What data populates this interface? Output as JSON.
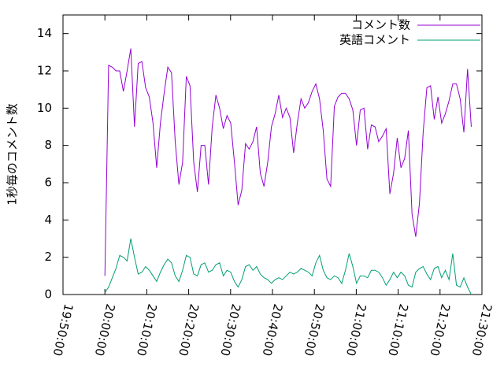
{
  "chart_data": {
    "type": "line",
    "y_label": "1秒毎のコメント数",
    "x": [
      72000,
      72053,
      72106,
      72159,
      72212,
      72265,
      72318,
      72371,
      72424,
      72477,
      72530,
      72583,
      72636,
      72689,
      72742,
      72795,
      72848,
      72901,
      72954,
      73007,
      73060,
      73113,
      73166,
      73219,
      73272,
      73325,
      73378,
      73431,
      73484,
      73537,
      73590,
      73643,
      73696,
      73749,
      73802,
      73855,
      73908,
      73961,
      74014,
      74067,
      74120,
      74173,
      74226,
      74279,
      74332,
      74385,
      74438,
      74491,
      74544,
      74597,
      74650,
      74703,
      74756,
      74809,
      74862,
      74915,
      74968,
      75021,
      75074,
      75127,
      75180,
      75233,
      75286,
      75339,
      75392,
      75445,
      75498,
      75551,
      75604,
      75657,
      75710,
      75763,
      75816,
      75869,
      75922,
      75975,
      76028,
      76081,
      76134,
      76187,
      76240,
      76293,
      76346,
      76399,
      76452,
      76505,
      76558,
      76611,
      76664,
      76717,
      76770,
      76823,
      76876,
      76929,
      76982,
      77035,
      77088,
      77141,
      77194,
      77247
    ],
    "series": [
      {
        "name": "コメント数",
        "color": "#9400d3",
        "values": [
          1.0,
          12.3,
          12.2,
          12.0,
          12.0,
          10.9,
          12.0,
          13.2,
          9.0,
          12.4,
          12.5,
          11.1,
          10.6,
          9.2,
          6.8,
          9.2,
          10.8,
          12.2,
          11.9,
          8.2,
          5.9,
          7.1,
          11.7,
          11.2,
          7.1,
          5.5,
          8.0,
          8.0,
          5.9,
          9.0,
          10.7,
          10.0,
          8.9,
          9.6,
          9.2,
          7.1,
          4.8,
          5.6,
          8.1,
          7.8,
          8.2,
          9.0,
          6.5,
          5.8,
          7.1,
          9.0,
          9.7,
          10.7,
          9.5,
          10.0,
          9.5,
          7.6,
          9.2,
          10.5,
          10.0,
          10.3,
          10.9,
          11.3,
          10.5,
          8.8,
          6.2,
          5.8,
          10.1,
          10.6,
          10.8,
          10.8,
          10.5,
          9.9,
          8.0,
          9.9,
          10.0,
          7.8,
          9.1,
          9.0,
          8.2,
          8.5,
          8.9,
          5.4,
          6.5,
          8.4,
          6.8,
          7.3,
          8.8,
          4.3,
          3.1,
          4.9,
          8.7,
          11.1,
          11.2,
          9.4,
          10.6,
          9.2,
          9.7,
          10.4,
          11.3,
          11.3,
          10.5,
          8.7,
          12.1,
          9.0
        ]
      },
      {
        "name": "英語コメント",
        "color": "#009e73",
        "values": [
          0.1,
          0.4,
          0.9,
          1.4,
          2.1,
          2.0,
          1.8,
          3.0,
          2.0,
          1.1,
          1.2,
          1.5,
          1.3,
          1.0,
          0.7,
          1.2,
          1.6,
          1.9,
          1.7,
          1.0,
          0.7,
          1.3,
          2.1,
          2.0,
          1.1,
          1.0,
          1.6,
          1.7,
          1.2,
          1.3,
          1.6,
          1.7,
          1.0,
          1.3,
          1.2,
          0.7,
          0.4,
          0.8,
          1.5,
          1.6,
          1.3,
          1.5,
          1.1,
          0.9,
          0.8,
          0.6,
          0.8,
          0.9,
          0.8,
          1.0,
          1.2,
          1.1,
          1.2,
          1.4,
          1.3,
          1.2,
          1.0,
          1.7,
          2.1,
          1.3,
          0.9,
          0.8,
          1.0,
          0.9,
          0.6,
          1.3,
          2.2,
          1.5,
          0.6,
          1.0,
          1.0,
          0.9,
          1.3,
          1.3,
          1.2,
          0.9,
          0.5,
          0.8,
          1.2,
          0.9,
          1.2,
          1.0,
          0.5,
          0.4,
          1.2,
          1.4,
          1.5,
          1.1,
          0.8,
          1.4,
          1.5,
          0.9,
          1.3,
          0.8,
          2.2,
          0.5,
          0.4,
          0.9,
          0.4,
          0.0
        ]
      }
    ],
    "xlim": [
      71400,
      77400
    ],
    "xticks": [
      {
        "value": 71400,
        "label": "19:50:00"
      },
      {
        "value": 72000,
        "label": "20:00:00"
      },
      {
        "value": 72600,
        "label": "20:10:00"
      },
      {
        "value": 73200,
        "label": "20:20:00"
      },
      {
        "value": 73800,
        "label": "20:30:00"
      },
      {
        "value": 74400,
        "label": "20:40:00"
      },
      {
        "value": 75000,
        "label": "20:50:00"
      },
      {
        "value": 75600,
        "label": "21:00:00"
      },
      {
        "value": 76200,
        "label": "21:10:00"
      },
      {
        "value": 76800,
        "label": "21:20:00"
      },
      {
        "value": 77400,
        "label": "21:30:00"
      }
    ],
    "ylim": [
      0,
      15
    ],
    "yticks": [
      0,
      2,
      4,
      6,
      8,
      10,
      12,
      14
    ],
    "legend": "top-right"
  }
}
